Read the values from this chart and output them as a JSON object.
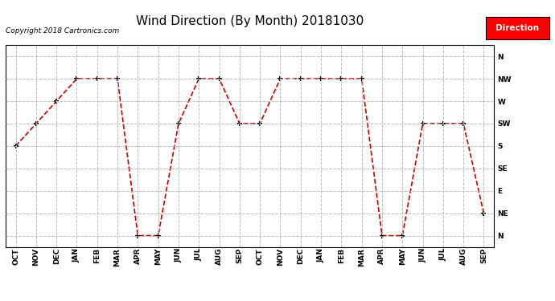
{
  "title": "Wind Direction (By Month) 20181030",
  "copyright_text": "Copyright 2018 Cartronics.com",
  "legend_label": "Direction",
  "legend_bg": "#ff0000",
  "legend_text_color": "#ffffff",
  "x_labels": [
    "OCT",
    "NOV",
    "DEC",
    "JAN",
    "FEB",
    "MAR",
    "APR",
    "MAY",
    "JUN",
    "JUL",
    "AUG",
    "SEP",
    "OCT",
    "NOV",
    "DEC",
    "JAN",
    "FEB",
    "MAR",
    "APR",
    "MAY",
    "JUN",
    "JUL",
    "AUG",
    "SEP"
  ],
  "y_labels": [
    "N",
    "NE",
    "E",
    "SE",
    "S",
    "SW",
    "W",
    "NW",
    "N"
  ],
  "y_values": [
    0,
    1,
    2,
    3,
    4,
    5,
    6,
    7,
    8
  ],
  "data_values": [
    4,
    5,
    6,
    7,
    7,
    7,
    0,
    0,
    5,
    7,
    7,
    5,
    5,
    7,
    7,
    7,
    7,
    7,
    0,
    0,
    5,
    5,
    5,
    1
  ],
  "line_color": "#cc0000",
  "marker": "+",
  "marker_color": "#000000",
  "marker_size": 5,
  "grid_color": "#bbbbbb",
  "grid_linestyle": "--",
  "bg_color": "#ffffff",
  "title_fontsize": 11,
  "tick_fontsize": 6.5,
  "fig_width": 6.9,
  "fig_height": 3.75,
  "dpi": 100
}
